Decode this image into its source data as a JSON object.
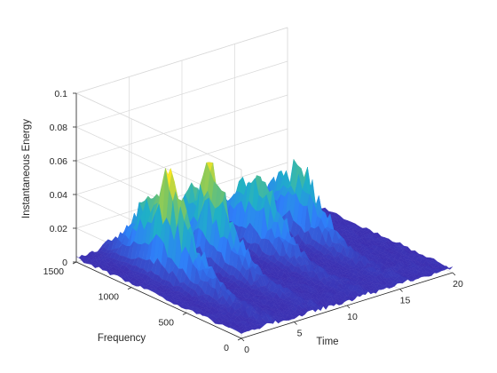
{
  "chart_data": {
    "type": "surface",
    "xlabel": "Time",
    "ylabel": "Frequency",
    "zlabel": "Instantaneous Energy",
    "xlim": [
      0,
      20
    ],
    "ylim": [
      0,
      1500
    ],
    "zlim": [
      0,
      0.1
    ],
    "x_ticks": [
      {
        "v": 0,
        "label": "0"
      },
      {
        "v": 5,
        "label": "5"
      },
      {
        "v": 10,
        "label": "10"
      },
      {
        "v": 15,
        "label": "15"
      },
      {
        "v": 20,
        "label": "20"
      }
    ],
    "y_ticks": [
      {
        "v": 0,
        "label": "0"
      },
      {
        "v": 500,
        "label": "500"
      },
      {
        "v": 1000,
        "label": "1000"
      },
      {
        "v": 1500,
        "label": "1500"
      }
    ],
    "z_ticks": [
      {
        "v": 0,
        "label": "0"
      },
      {
        "v": 0.02,
        "label": "0.02"
      },
      {
        "v": 0.04,
        "label": "0.04"
      },
      {
        "v": 0.06,
        "label": "0.06"
      },
      {
        "v": 0.08,
        "label": "0.08"
      },
      {
        "v": 0.1,
        "label": "0.1"
      }
    ],
    "grid": true,
    "colormap": "parula",
    "colors": {
      "low": "#3e26a8",
      "mid_low": "#2f7ff9",
      "mid": "#1fb0c7",
      "mid_high": "#7fc75f",
      "high": "#f9e524"
    },
    "bursts": [
      {
        "time": 3.0,
        "peak": 0.06
      },
      {
        "time": 7.0,
        "peak": 0.051
      },
      {
        "time": 11.5,
        "peak": 0.042
      },
      {
        "time": 15.3,
        "peak": 0.041
      }
    ]
  }
}
